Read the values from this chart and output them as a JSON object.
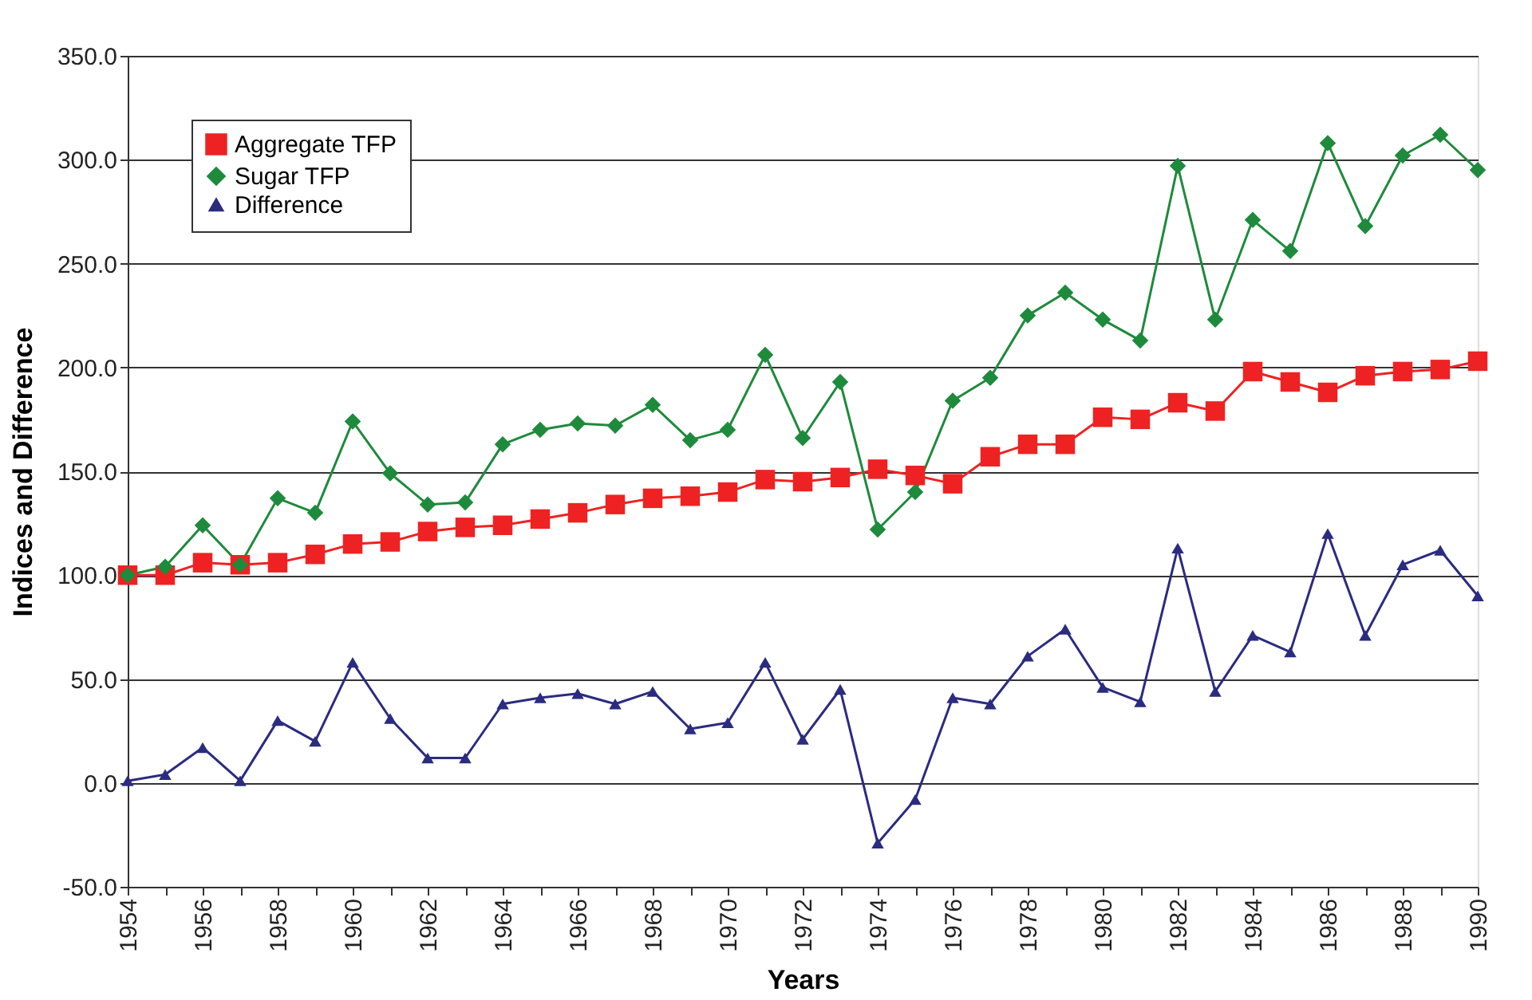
{
  "chart_data": {
    "type": "line",
    "xlabel": "Years",
    "ylabel": "Indices and Difference",
    "x": [
      1954,
      1955,
      1956,
      1957,
      1958,
      1959,
      1960,
      1961,
      1962,
      1963,
      1964,
      1965,
      1966,
      1967,
      1968,
      1969,
      1970,
      1971,
      1972,
      1973,
      1974,
      1975,
      1976,
      1977,
      1978,
      1979,
      1980,
      1981,
      1982,
      1983,
      1984,
      1985,
      1986,
      1987,
      1988,
      1989,
      1990
    ],
    "series": [
      {
        "name": "Aggregate TFP",
        "color": "#ee2222",
        "marker": "square",
        "values": [
          100,
          100,
          106,
          105,
          106,
          110,
          115,
          116,
          121,
          123,
          124,
          127,
          130,
          134,
          137,
          138,
          140,
          146,
          145,
          147,
          151,
          148,
          144,
          157,
          163,
          163,
          176,
          175,
          183,
          179,
          198,
          193,
          188,
          196,
          198,
          199,
          203
        ]
      },
      {
        "name": "Sugar TFP",
        "color": "#1e8a3c",
        "marker": "diamond",
        "values": [
          100,
          104,
          124,
          105,
          137,
          130,
          174,
          149,
          134,
          135,
          163,
          170,
          173,
          172,
          182,
          165,
          170,
          206,
          166,
          193,
          122,
          140,
          184,
          195,
          225,
          236,
          223,
          213,
          297,
          223,
          271,
          256,
          308,
          268,
          302,
          312,
          295
        ]
      },
      {
        "name": "Difference",
        "color": "#2b2b80",
        "marker": "triangle",
        "values": [
          1,
          4,
          17,
          1,
          30,
          20,
          58,
          31,
          12,
          12,
          38,
          41,
          43,
          38,
          44,
          26,
          29,
          58,
          21,
          45,
          -29,
          -8,
          41,
          38,
          61,
          74,
          46,
          39,
          113,
          44,
          71,
          63,
          120,
          71,
          105,
          112,
          90
        ]
      }
    ],
    "xlim": [
      1954,
      1990
    ],
    "xticks": [
      1954,
      {
        "value": 1955,
        "label": null
      },
      1956,
      {
        "value": 1957,
        "label": null
      },
      1958,
      {
        "value": 1959,
        "label": null
      },
      1960,
      {
        "value": 1961,
        "label": null
      },
      1962,
      {
        "value": 1963,
        "label": null
      },
      1964,
      {
        "value": 1965,
        "label": null
      },
      1966,
      {
        "value": 1967,
        "label": null
      },
      1968,
      {
        "value": 1969,
        "label": null
      },
      1970,
      {
        "value": 1971,
        "label": null
      },
      1972,
      {
        "value": 1973,
        "label": null
      },
      1974,
      {
        "value": 1975,
        "label": null
      },
      1976,
      {
        "value": 1977,
        "label": null
      },
      1978,
      {
        "value": 1979,
        "label": null
      },
      1980,
      {
        "value": 1981,
        "label": null
      },
      1982,
      {
        "value": 1983,
        "label": null
      },
      1984,
      {
        "value": 1985,
        "label": null
      },
      1986,
      {
        "value": 1987,
        "label": null
      },
      1988,
      {
        "value": 1989,
        "label": null
      },
      1990
    ],
    "ylim": [
      -50,
      350
    ],
    "yticks": [
      {
        "value": -50,
        "label": "-50.0"
      },
      {
        "value": 0,
        "label": "0.0"
      },
      {
        "value": 50,
        "label": "50.0"
      },
      {
        "value": 100,
        "label": "100.0"
      },
      {
        "value": 150,
        "label": "150.0"
      },
      {
        "value": 200,
        "label": "200.0"
      },
      {
        "value": 250,
        "label": "250.0"
      },
      {
        "value": 300,
        "label": "300.0"
      },
      {
        "value": 350,
        "label": "350.0"
      }
    ],
    "grid": "y",
    "legend": "top left"
  }
}
